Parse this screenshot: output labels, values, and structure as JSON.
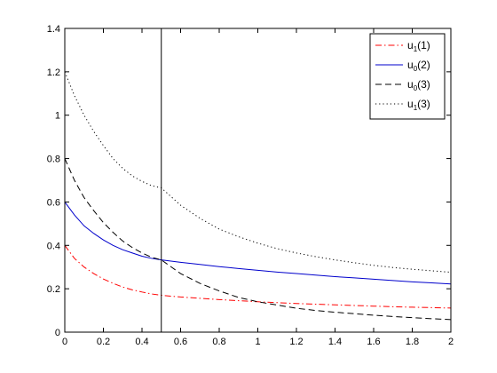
{
  "chart_data": {
    "type": "line",
    "xlim": [
      0,
      2
    ],
    "ylim": [
      0,
      1.4
    ],
    "xticks": [
      "0",
      "0.2",
      "0.4",
      "0.6",
      "0.8",
      "1",
      "1.2",
      "1.4",
      "1.6",
      "1.8",
      "2"
    ],
    "yticks": [
      "0",
      "0.2",
      "0.4",
      "0.6",
      "0.8",
      "1",
      "1.2",
      "1.4"
    ],
    "grid": false,
    "legend_position": "top-right",
    "vertical_line_x": 0.5,
    "series": [
      {
        "name": "u1(1)",
        "legend": {
          "base": "u",
          "sub": "1",
          "arg": "(1)"
        },
        "color": "#ff0000",
        "dash": "dashdot",
        "x": [
          0,
          0.05,
          0.1,
          0.15,
          0.2,
          0.25,
          0.3,
          0.35,
          0.4,
          0.45,
          0.5,
          0.6,
          0.7,
          0.8,
          0.9,
          1.0,
          1.1,
          1.2,
          1.3,
          1.4,
          1.5,
          1.6,
          1.7,
          1.8,
          1.9,
          2.0
        ],
        "y": [
          0.4,
          0.34,
          0.3,
          0.27,
          0.245,
          0.225,
          0.208,
          0.195,
          0.185,
          0.176,
          0.17,
          0.162,
          0.156,
          0.15,
          0.145,
          0.14,
          0.136,
          0.132,
          0.129,
          0.126,
          0.123,
          0.12,
          0.117,
          0.115,
          0.113,
          0.111
        ]
      },
      {
        "name": "u0(2)",
        "legend": {
          "base": "u",
          "sub": "0",
          "arg": "(2)"
        },
        "color": "#0000cc",
        "dash": "solid",
        "x": [
          0,
          0.05,
          0.1,
          0.15,
          0.2,
          0.25,
          0.3,
          0.35,
          0.4,
          0.45,
          0.5,
          0.6,
          0.7,
          0.8,
          0.9,
          1.0,
          1.1,
          1.2,
          1.3,
          1.4,
          1.5,
          1.6,
          1.7,
          1.8,
          1.9,
          2.0
        ],
        "y": [
          0.6,
          0.54,
          0.49,
          0.455,
          0.425,
          0.4,
          0.38,
          0.365,
          0.35,
          0.34,
          0.333,
          0.322,
          0.312,
          0.302,
          0.293,
          0.285,
          0.277,
          0.27,
          0.263,
          0.256,
          0.25,
          0.244,
          0.238,
          0.232,
          0.227,
          0.222
        ]
      },
      {
        "name": "u0(3)",
        "legend": {
          "base": "u",
          "sub": "0",
          "arg": "(3)"
        },
        "color": "#000000",
        "dash": "dashed",
        "x": [
          0,
          0.05,
          0.1,
          0.15,
          0.2,
          0.25,
          0.3,
          0.35,
          0.4,
          0.45,
          0.5,
          0.6,
          0.7,
          0.8,
          0.9,
          1.0,
          1.1,
          1.2,
          1.3,
          1.4,
          1.5,
          1.6,
          1.7,
          1.8,
          1.9,
          2.0
        ],
        "y": [
          0.8,
          0.7,
          0.62,
          0.56,
          0.505,
          0.46,
          0.42,
          0.39,
          0.365,
          0.345,
          0.333,
          0.27,
          0.225,
          0.19,
          0.16,
          0.14,
          0.125,
          0.11,
          0.1,
          0.092,
          0.085,
          0.078,
          0.072,
          0.067,
          0.062,
          0.058
        ]
      },
      {
        "name": "u1(3)",
        "legend": {
          "base": "u",
          "sub": "1",
          "arg": "(3)"
        },
        "color": "#000000",
        "dash": "dotted",
        "x": [
          0,
          0.05,
          0.1,
          0.15,
          0.2,
          0.25,
          0.3,
          0.35,
          0.4,
          0.45,
          0.5,
          0.6,
          0.7,
          0.8,
          0.9,
          1.0,
          1.1,
          1.2,
          1.3,
          1.4,
          1.5,
          1.6,
          1.7,
          1.8,
          1.9,
          2.0
        ],
        "y": [
          1.2,
          1.09,
          1.0,
          0.925,
          0.86,
          0.8,
          0.755,
          0.72,
          0.695,
          0.675,
          0.665,
          0.585,
          0.525,
          0.475,
          0.44,
          0.41,
          0.385,
          0.365,
          0.348,
          0.333,
          0.32,
          0.308,
          0.298,
          0.29,
          0.283,
          0.276
        ]
      }
    ]
  }
}
